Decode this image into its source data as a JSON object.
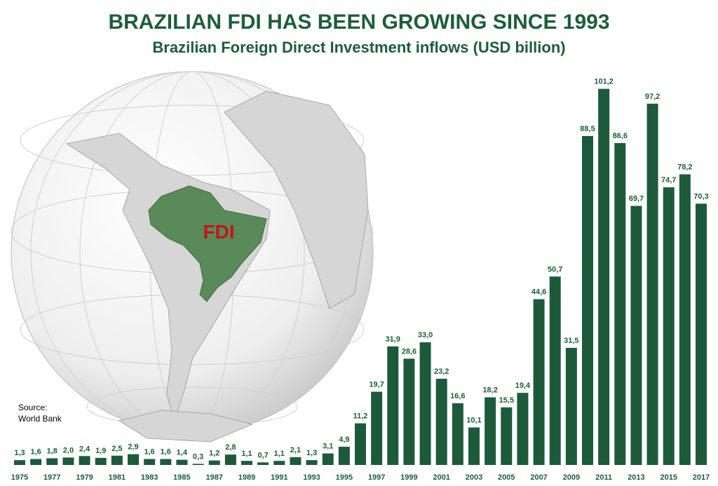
{
  "chart_data": {
    "type": "bar",
    "title": "BRAZILIAN FDI HAS BEEN GROWING SINCE 1993",
    "subtitle": "Brazilian Foreign Direct Investment inflows (USD billion)",
    "annotation": "FDI",
    "source": [
      "Source:",
      "World Bank"
    ],
    "color": "#1d5a3c",
    "categories": [
      "1975",
      null,
      "1977",
      null,
      "1979",
      null,
      "1981",
      null,
      "1983",
      null,
      "1985",
      null,
      "1987",
      null,
      "1989",
      null,
      "1991",
      null,
      "1993",
      null,
      "1995",
      null,
      "1997",
      null,
      "1999",
      null,
      "2001",
      null,
      "2003",
      null,
      "2005",
      null,
      "2007",
      null,
      "2009",
      null,
      "2011",
      null,
      "2013",
      null,
      "2015",
      null,
      "2017"
    ],
    "values": [
      1.3,
      1.6,
      1.8,
      2.0,
      2.4,
      1.9,
      2.5,
      2.9,
      1.6,
      1.6,
      1.4,
      0.3,
      1.2,
      2.8,
      1.1,
      0.7,
      1.1,
      2.1,
      1.3,
      3.1,
      4.9,
      11.2,
      19.7,
      31.9,
      28.6,
      33.0,
      23.2,
      16.6,
      10.1,
      18.2,
      15.5,
      19.4,
      44.6,
      50.7,
      31.5,
      88.5,
      101.2,
      86.6,
      69.7,
      97.2,
      74.7,
      78.2,
      70.3
    ],
    "value_labels": [
      "1,3",
      "1,6",
      "1,8",
      "2,0",
      "2,4",
      "1,9",
      "2,5",
      "2,9",
      "1,6",
      "1,6",
      "1,4",
      "0,3",
      "1,2",
      "2,8",
      "1,1",
      "0,7",
      "1,1",
      "2,1",
      "1,3",
      "3,1",
      "4,9",
      "11,2",
      "19,7",
      "31,9",
      "28,6",
      "33,0",
      "23,2",
      "16,6",
      "10,1",
      "18,2",
      "15,5",
      "19,4",
      "44,6",
      "50,7",
      "31,5",
      "88,5",
      "101,2",
      "86,6",
      "69,7",
      "97,2",
      "74,7",
      "78,2",
      "70,3"
    ]
  }
}
